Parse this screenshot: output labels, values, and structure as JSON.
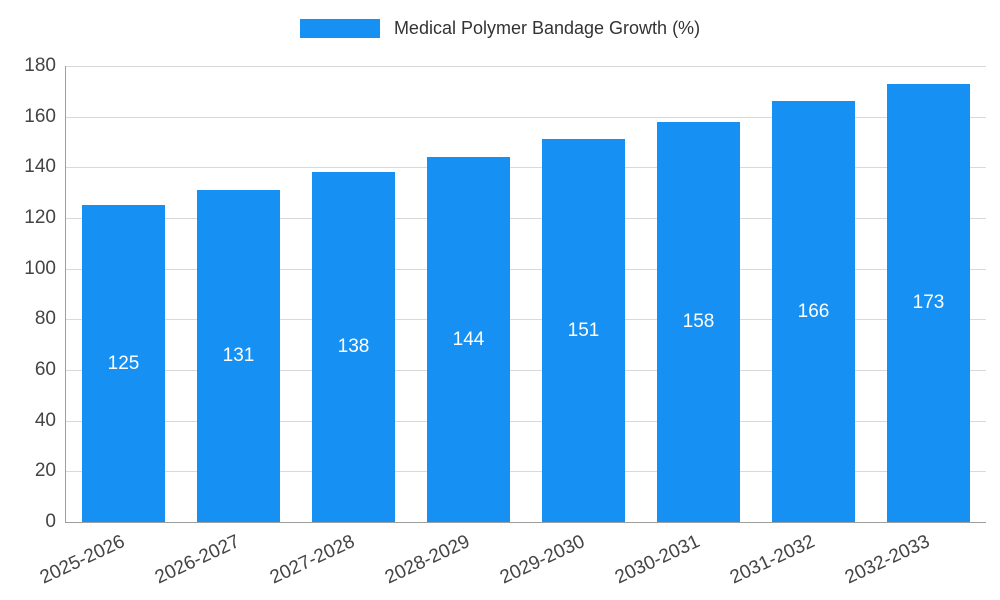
{
  "chart_data": {
    "type": "bar",
    "title": "Medical Polymer Bandage Growth (%)",
    "categories": [
      "2025-2026",
      "2026-2027",
      "2027-2028",
      "2028-2029",
      "2029-2030",
      "2030-2031",
      "2031-2032",
      "2032-2033"
    ],
    "values": [
      125,
      131,
      138,
      144,
      151,
      158,
      166,
      173
    ],
    "xlabel": "",
    "ylabel": "",
    "ylim": [
      0,
      180
    ],
    "ytick_step": 20,
    "grid": true,
    "legend_position": "top-center",
    "bar_color": "#1690f2",
    "value_label_color": "#ffffff",
    "tick_label_color": "#444444",
    "grid_color": "#d9d9d9",
    "axis_color": "#9e9e9e",
    "background_color": "#ffffff"
  }
}
